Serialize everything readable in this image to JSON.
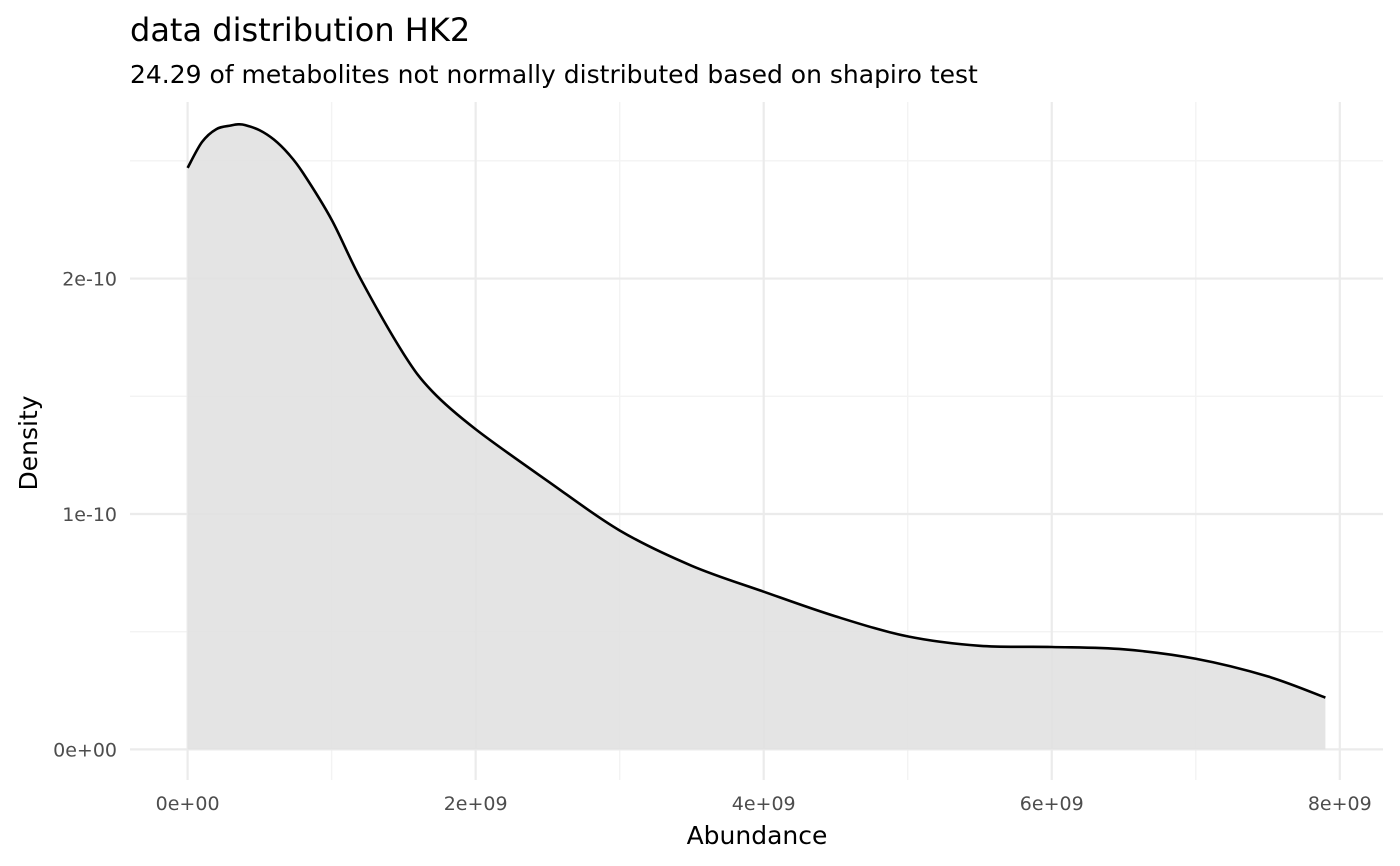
{
  "chart_data": {
    "type": "area",
    "title": "data distribution  HK2",
    "subtitle": "24.29  of metabolites not normally distributed based on shapiro test",
    "xlabel": "Abundance",
    "ylabel": "Density",
    "xlim": [
      -400000000,
      8300000000
    ],
    "ylim": [
      -1.3e-11,
      2.75e-10
    ],
    "x_ticks": [
      0,
      2000000000,
      4000000000,
      6000000000,
      8000000000
    ],
    "x_tick_labels": [
      "0e+00",
      "2e+09",
      "4e+09",
      "6e+09",
      "8e+09"
    ],
    "x_minor_ticks": [
      1000000000,
      3000000000,
      5000000000,
      7000000000
    ],
    "y_ticks": [
      0,
      1e-10,
      2e-10
    ],
    "y_tick_labels": [
      "0e+00",
      "1e-10",
      "2e-10"
    ],
    "y_minor_ticks": [
      5e-11,
      1.5e-10,
      2.5e-10
    ],
    "grid": true,
    "legend": "none",
    "colors": {
      "fill": "#e1e1e1",
      "line": "#000000",
      "grid_major": "#ebebeb",
      "grid_minor": "#f3f3f3",
      "tick_text": "#4d4d4d"
    },
    "series": [
      {
        "x": [
          0,
          100000000,
          200000000,
          300000000,
          350000000,
          400000000,
          500000000,
          600000000,
          700000000,
          800000000,
          1000000000,
          1200000000,
          1500000000,
          1700000000,
          2000000000,
          2500000000,
          3000000000,
          3500000000,
          4000000000,
          4500000000,
          5000000000,
          5500000000,
          6000000000,
          6500000000,
          7000000000,
          7500000000,
          7900000000
        ],
        "y": [
          2.47e-10,
          2.58e-10,
          2.635e-10,
          2.65e-10,
          2.655e-10,
          2.652e-10,
          2.63e-10,
          2.59e-10,
          2.53e-10,
          2.45e-10,
          2.25e-10,
          2e-10,
          1.68e-10,
          1.52e-10,
          1.36e-10,
          1.14e-10,
          9.3e-11,
          7.8e-11,
          6.7e-11,
          5.65e-11,
          4.8e-11,
          4.4e-11,
          4.35e-11,
          4.25e-11,
          3.85e-11,
          3.1e-11,
          2.2e-11
        ]
      }
    ]
  }
}
